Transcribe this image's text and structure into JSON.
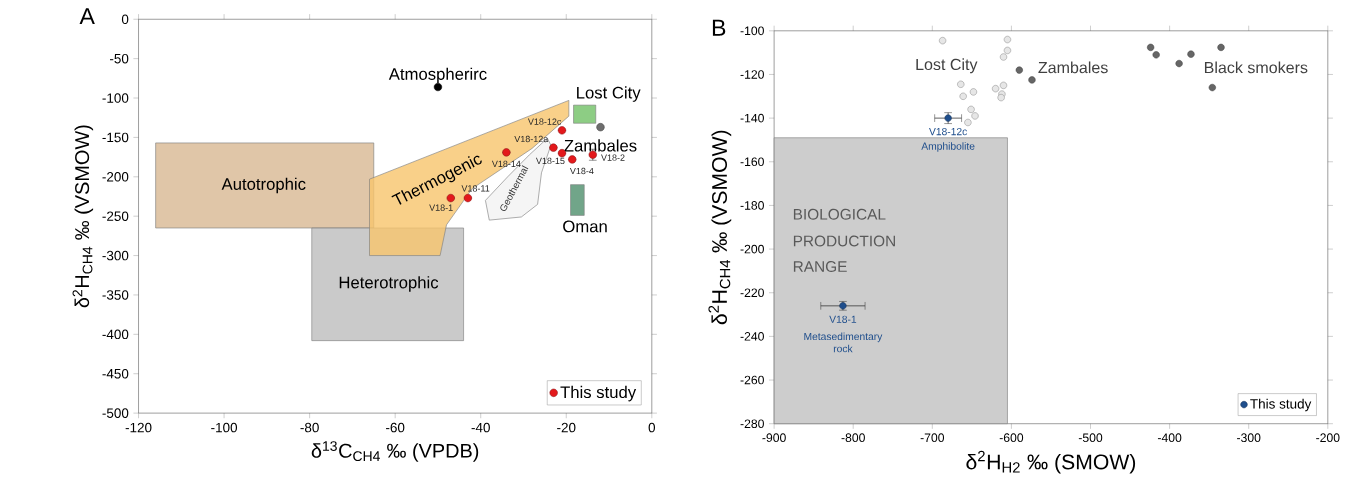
{
  "chart_data": [
    {
      "type": "scatter",
      "title": "A",
      "xlabel": "δ$^{13}$C$_{CH4}$ ‰ (VPDB)",
      "ylabel": "δ$^{2}$H$_{CH4}$ ‰ (VSMOW)",
      "xlim": [
        -120,
        0
      ],
      "ylim": [
        -500,
        0
      ],
      "xticks": [
        -120,
        -100,
        -80,
        -60,
        -40,
        -20,
        0
      ],
      "yticks": [
        -500,
        -450,
        -400,
        -350,
        -300,
        -250,
        -200,
        -150,
        -100,
        -50,
        0
      ],
      "legend": "bottom right",
      "series": [
        {
          "type": "area",
          "color": "#d8b892",
          "x": [
            -116,
            -65,
            -65,
            -116
          ],
          "values": [
            -157,
            -157,
            -265,
            -265
          ]
        },
        {
          "type": "area",
          "color": "#bdbdbd",
          "x": [
            -79.5,
            -44,
            -44,
            -79.5
          ],
          "values": [
            -265,
            -265,
            -408,
            -408
          ]
        },
        {
          "type": "area",
          "color": "#f7c46c",
          "x": [
            -66,
            -19.4,
            -19.4,
            -28,
            -42,
            -48,
            -49.5,
            -66
          ],
          "values": [
            -203,
            -103,
            -123,
            -164,
            -215,
            -261,
            -300,
            -300
          ]
        },
        {
          "type": "area",
          "color": "#f2f2f2",
          "x": [
            -38.9,
            -33.7,
            -28.6,
            -24.4,
            -23.6,
            -25.8,
            -26.7,
            -30.5,
            -38
          ],
          "values": [
            -230,
            -200,
            -172,
            -151,
            -160,
            -195,
            -235,
            -251,
            -255
          ]
        },
        {
          "type": "area",
          "color": "#70c065",
          "x": [
            -18.3,
            -13.1,
            -13.1,
            -18.3
          ],
          "values": [
            -109,
            -109,
            -132,
            -132
          ]
        },
        {
          "type": "area",
          "color": "#4d8f6b",
          "x": [
            -19,
            -15.8,
            -15.8,
            -19
          ],
          "values": [
            -210,
            -210,
            -249,
            -249
          ]
        },
        {
          "marker": "circle",
          "color": "#000000",
          "x": [
            -50
          ],
          "values": [
            -86
          ]
        },
        {
          "marker": "circle",
          "color": "#6e6e6e",
          "x": [
            -12
          ],
          "values": [
            -137
          ]
        },
        {
          "marker": "circle",
          "name": "This study",
          "color": "#e3191c",
          "x": [
            -47,
            -43,
            -34,
            -21,
            -23,
            -21,
            -18.6,
            -13.8
          ],
          "values": [
            -227,
            -227,
            -169,
            -141,
            -163,
            -170,
            -178,
            -172
          ],
          "errors": [
            null,
            null,
            null,
            null,
            null,
            null,
            null,
            7
          ]
        }
      ],
      "annotations": [
        {
          "text": "Atmospherirc",
          "x": -50,
          "y": -86
        },
        "Lost City",
        {
          "text": "Zambales",
          "x": -12,
          "y": -137
        },
        "Oman",
        "Autotrophic",
        "Heterotrophic",
        "Thermogenic",
        "Geothermal",
        {
          "text": "V18-12c",
          "x": -21,
          "y": -141
        },
        {
          "text": "V18-12a",
          "x": -23,
          "y": -163
        },
        {
          "text": "V18-14",
          "x": -34,
          "y": -169
        },
        {
          "text": "V18-15",
          "x": -21,
          "y": -170
        },
        {
          "text": "V18-4",
          "x": -18.6,
          "y": -178
        },
        {
          "text": "V18-2",
          "x": -13.8,
          "y": -172
        },
        {
          "text": "V18-11",
          "x": -43,
          "y": -227
        },
        {
          "text": "V18-1",
          "x": -47,
          "y": -227
        }
      ]
    },
    {
      "type": "scatter",
      "title": "B",
      "xlabel": "δ$^{2}$H$_{H2}$ ‰ (SMOW)",
      "ylabel": "δ$^{2}$H$_{CH4}$ ‰ (VSMOW)",
      "xlim": [
        -900,
        -200
      ],
      "ylim": [
        -280,
        -100
      ],
      "xticks": [
        -900,
        -800,
        -700,
        -600,
        -500,
        -400,
        -300,
        -200
      ],
      "yticks": [
        -280,
        -260,
        -240,
        -220,
        -200,
        -180,
        -160,
        -140,
        -120,
        -100
      ],
      "legend": "bottom right",
      "series": [
        {
          "type": "area",
          "color": "#c0c0c0",
          "x": [
            -900,
            -605,
            -605,
            -900
          ],
          "values": [
            -149,
            -149,
            -280,
            -280
          ]
        },
        {
          "marker": "circle",
          "color": "#e6e6e6",
          "x": [
            -687,
            -605,
            -605,
            -610,
            -664,
            -661,
            -648,
            -620,
            -610,
            -612,
            -613,
            -651,
            -646,
            -655
          ],
          "values": [
            -104.5,
            -104,
            -109,
            -112,
            -124.5,
            -130,
            -128,
            -126.5,
            -125,
            -129,
            -130.6,
            -136,
            -139,
            -142
          ]
        },
        {
          "marker": "circle",
          "color": "#666666",
          "x": [
            -590,
            -574
          ],
          "values": [
            -118,
            -122.5
          ]
        },
        {
          "marker": "circle",
          "color": "#666666",
          "x": [
            -424,
            -417,
            -388,
            -373,
            -335,
            -346
          ],
          "values": [
            -107.6,
            -111,
            -115,
            -110.7,
            -107.6,
            -126
          ]
        },
        {
          "marker": "circle",
          "name": "This study",
          "color": "#1f4e8c",
          "x": [
            -680,
            -813
          ],
          "values": [
            -140,
            -226
          ],
          "errors": [
            2.5,
            2
          ],
          "xerrors": [
            17,
            28
          ]
        }
      ],
      "annotations": [
        "Lost City",
        "Zambales",
        "Black smokers",
        "BIOLOGICAL",
        "PRODUCTION",
        "RANGE",
        {
          "text": "V18-12c",
          "x": -680,
          "y": -140
        },
        {
          "text": "Amphibolite",
          "x": -680,
          "y": -140
        },
        {
          "text": "V18-1",
          "x": -813,
          "y": -226
        },
        {
          "text": "Metasedimentary rock",
          "x": -813,
          "y": -226
        }
      ]
    }
  ]
}
